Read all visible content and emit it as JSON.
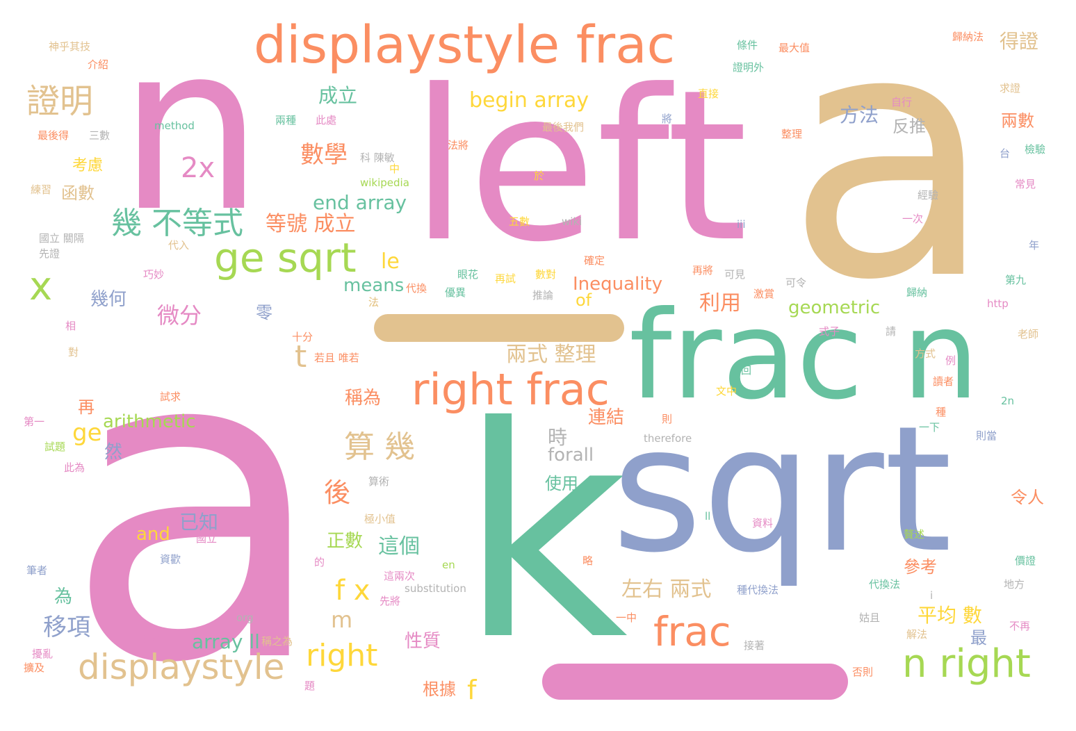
{
  "palette": {
    "pink": "#e58ac4",
    "tan": "#e2c28f",
    "teal": "#67c19f",
    "blue": "#8fa0cb",
    "orange": "#fb8e62",
    "lime": "#a6d853",
    "yellow": "#fed73a",
    "gray": "#b3b3b3"
  },
  "words": [
    {
      "t": "a",
      "c": "pink"
    },
    {
      "t": "a",
      "c": "tan"
    },
    {
      "t": "n",
      "c": "pink"
    },
    {
      "t": "left",
      "c": "pink"
    },
    {
      "t": "k",
      "c": "teal"
    },
    {
      "t": "sqrt",
      "c": "blue"
    },
    {
      "t": "frac n",
      "c": "teal"
    },
    {
      "t": "displaystyle frac",
      "c": "orange"
    },
    {
      "t": "right frac",
      "c": "orange"
    },
    {
      "t": "ge sqrt",
      "c": "lime"
    },
    {
      "t": "displaystyle",
      "c": "tan"
    },
    {
      "t": "n right",
      "c": "lime"
    },
    {
      "t": "frac",
      "c": "orange"
    },
    {
      "t": "x",
      "c": "lime"
    },
    {
      "t": "證明",
      "c": "tan"
    },
    {
      "t": "幾 不等式",
      "c": "teal"
    },
    {
      "t": "2x",
      "c": "pink"
    },
    {
      "t": "算 幾",
      "c": "tan"
    },
    {
      "t": "right",
      "c": "yellow"
    },
    {
      "t": "f x",
      "c": "yellow"
    },
    {
      "t": "t",
      "c": "tan"
    },
    {
      "t": "begin array",
      "c": "yellow"
    },
    {
      "t": "end array",
      "c": "teal"
    },
    {
      "t": "數學",
      "c": "orange"
    },
    {
      "t": "成立",
      "c": "teal"
    },
    {
      "t": "等號 成立",
      "c": "orange"
    },
    {
      "t": "le",
      "c": "yellow"
    },
    {
      "t": "means",
      "c": "teal"
    },
    {
      "t": "Inequality",
      "c": "orange"
    },
    {
      "t": "of",
      "c": "yellow"
    },
    {
      "t": "geometric",
      "c": "lime"
    },
    {
      "t": "微分",
      "c": "pink"
    },
    {
      "t": "幾何",
      "c": "blue"
    },
    {
      "t": "arithmetic",
      "c": "lime"
    },
    {
      "t": "ge",
      "c": "yellow"
    },
    {
      "t": "兩式 整理",
      "c": "tan"
    },
    {
      "t": "稱為",
      "c": "orange"
    },
    {
      "t": "連結",
      "c": "orange"
    },
    {
      "t": "時",
      "c": "gray"
    },
    {
      "t": "forall",
      "c": "gray"
    },
    {
      "t": "後",
      "c": "orange"
    },
    {
      "t": "已知",
      "c": "blue"
    },
    {
      "t": "and",
      "c": "yellow"
    },
    {
      "t": "正數",
      "c": "lime"
    },
    {
      "t": "這個",
      "c": "teal"
    },
    {
      "t": "移項",
      "c": "blue"
    },
    {
      "t": "array ll",
      "c": "teal"
    },
    {
      "t": "m",
      "c": "tan"
    },
    {
      "t": "性質",
      "c": "pink"
    },
    {
      "t": "根據",
      "c": "orange"
    },
    {
      "t": "f",
      "c": "yellow"
    },
    {
      "t": "左右 兩式",
      "c": "tan"
    },
    {
      "t": "平均 數",
      "c": "yellow"
    },
    {
      "t": "參考",
      "c": "orange"
    },
    {
      "t": "最",
      "c": "blue"
    },
    {
      "t": "利用",
      "c": "orange"
    },
    {
      "t": "使用",
      "c": "teal"
    },
    {
      "t": "令人",
      "c": "orange"
    },
    {
      "t": "方法",
      "c": "blue"
    },
    {
      "t": "反推",
      "c": "gray"
    },
    {
      "t": "兩數",
      "c": "orange"
    },
    {
      "t": "得證",
      "c": "tan"
    },
    {
      "t": "考慮",
      "c": "yellow"
    },
    {
      "t": "函數",
      "c": "tan"
    },
    {
      "t": "再",
      "c": "orange"
    },
    {
      "t": "然",
      "c": "blue"
    },
    {
      "t": "為",
      "c": "teal"
    },
    {
      "t": "零",
      "c": "blue"
    },
    {
      "t": "神乎其技",
      "c": "tan"
    },
    {
      "t": "介紹",
      "c": "orange"
    },
    {
      "t": "method",
      "c": "teal"
    },
    {
      "t": "最後得",
      "c": "orange"
    },
    {
      "t": "三數",
      "c": "gray"
    },
    {
      "t": "練習",
      "c": "tan"
    },
    {
      "t": "國立 關隔",
      "c": "gray"
    },
    {
      "t": "先證",
      "c": "gray"
    },
    {
      "t": "代入",
      "c": "tan"
    },
    {
      "t": "巧妙",
      "c": "pink"
    },
    {
      "t": "相",
      "c": "pink"
    },
    {
      "t": "對",
      "c": "tan"
    },
    {
      "t": "第一",
      "c": "pink"
    },
    {
      "t": "試題",
      "c": "lime"
    },
    {
      "t": "此為",
      "c": "pink"
    },
    {
      "t": "筆者",
      "c": "blue"
    },
    {
      "t": "擾亂",
      "c": "pink"
    },
    {
      "t": "擴及",
      "c": "orange"
    },
    {
      "t": "明為",
      "c": "pink"
    },
    {
      "t": "稱之為",
      "c": "tan"
    },
    {
      "t": "題",
      "c": "pink"
    },
    {
      "t": "試求",
      "c": "orange"
    },
    {
      "t": "十分",
      "c": "orange"
    },
    {
      "t": "若且 唯若",
      "c": "orange"
    },
    {
      "t": "國立",
      "c": "pink"
    },
    {
      "t": "資歡",
      "c": "blue"
    },
    {
      "t": "的",
      "c": "pink"
    },
    {
      "t": "en",
      "c": "lime"
    },
    {
      "t": "這兩次",
      "c": "pink"
    },
    {
      "t": "先將",
      "c": "pink"
    },
    {
      "t": "substitution",
      "c": "gray"
    },
    {
      "t": "org",
      "c": "gray"
    },
    {
      "t": "算術",
      "c": "gray"
    },
    {
      "t": "極小值",
      "c": "tan"
    },
    {
      "t": "法",
      "c": "yellow"
    },
    {
      "t": "兩種",
      "c": "teal"
    },
    {
      "t": "此處",
      "c": "pink"
    },
    {
      "t": "科 陳敏",
      "c": "gray"
    },
    {
      "t": "中",
      "c": "yellow"
    },
    {
      "t": "wikipedia",
      "c": "lime"
    },
    {
      "t": "於",
      "c": "yellow"
    },
    {
      "t": "法將",
      "c": "orange"
    },
    {
      "t": "最後我們",
      "c": "tan"
    },
    {
      "t": "條件",
      "c": "teal"
    },
    {
      "t": "證明外",
      "c": "teal"
    },
    {
      "t": "最大值",
      "c": "orange"
    },
    {
      "t": "直接",
      "c": "yellow"
    },
    {
      "t": "將",
      "c": "blue"
    },
    {
      "t": "整理",
      "c": "orange"
    },
    {
      "t": "五數",
      "c": "yellow"
    },
    {
      "t": "wiki",
      "c": "gray"
    },
    {
      "t": "iii",
      "c": "blue"
    },
    {
      "t": "確定",
      "c": "orange"
    },
    {
      "t": "眼花",
      "c": "teal"
    },
    {
      "t": "再試",
      "c": "yellow"
    },
    {
      "t": "數對",
      "c": "yellow"
    },
    {
      "t": "推論",
      "c": "gray"
    },
    {
      "t": "優異",
      "c": "teal"
    },
    {
      "t": "再將",
      "c": "orange"
    },
    {
      "t": "可見",
      "c": "gray"
    },
    {
      "t": "可令",
      "c": "gray"
    },
    {
      "t": "激賞",
      "c": "orange"
    },
    {
      "t": "歸納法",
      "c": "orange"
    },
    {
      "t": "求證",
      "c": "tan"
    },
    {
      "t": "自行",
      "c": "pink"
    },
    {
      "t": "檢驗",
      "c": "teal"
    },
    {
      "t": "台",
      "c": "blue"
    },
    {
      "t": "常見",
      "c": "pink"
    },
    {
      "t": "經驗",
      "c": "gray"
    },
    {
      "t": "一次",
      "c": "pink"
    },
    {
      "t": "年",
      "c": "blue"
    },
    {
      "t": "第九",
      "c": "teal"
    },
    {
      "t": "歸納",
      "c": "teal"
    },
    {
      "t": "http",
      "c": "pink"
    },
    {
      "t": "老師",
      "c": "tan"
    },
    {
      "t": "請",
      "c": "gray"
    },
    {
      "t": "式子",
      "c": "pink"
    },
    {
      "t": "方式",
      "c": "tan"
    },
    {
      "t": "例",
      "c": "pink"
    },
    {
      "t": "讀者",
      "c": "orange"
    },
    {
      "t": "回",
      "c": "teal"
    },
    {
      "t": "文中",
      "c": "yellow"
    },
    {
      "t": "種",
      "c": "orange"
    },
    {
      "t": "2n",
      "c": "teal"
    },
    {
      "t": "則",
      "c": "orange"
    },
    {
      "t": "一下",
      "c": "teal"
    },
    {
      "t": "則當",
      "c": "blue"
    },
    {
      "t": "therefore",
      "c": "gray"
    },
    {
      "t": "ll",
      "c": "teal"
    },
    {
      "t": "資料",
      "c": "pink"
    },
    {
      "t": "略",
      "c": "orange"
    },
    {
      "t": "贅述",
      "c": "lime"
    },
    {
      "t": "價證",
      "c": "teal"
    },
    {
      "t": "代換法",
      "c": "teal"
    },
    {
      "t": "地方",
      "c": "gray"
    },
    {
      "t": "種代換法",
      "c": "blue"
    },
    {
      "t": "姑且",
      "c": "gray"
    },
    {
      "t": "解法",
      "c": "tan"
    },
    {
      "t": "不再",
      "c": "pink"
    },
    {
      "t": "一中",
      "c": "orange"
    },
    {
      "t": "接著",
      "c": "gray"
    },
    {
      "t": "否則",
      "c": "orange"
    },
    {
      "t": "代換",
      "c": "orange"
    },
    {
      "t": "法",
      "c": "tan"
    },
    {
      "t": "i",
      "c": "gray"
    }
  ]
}
